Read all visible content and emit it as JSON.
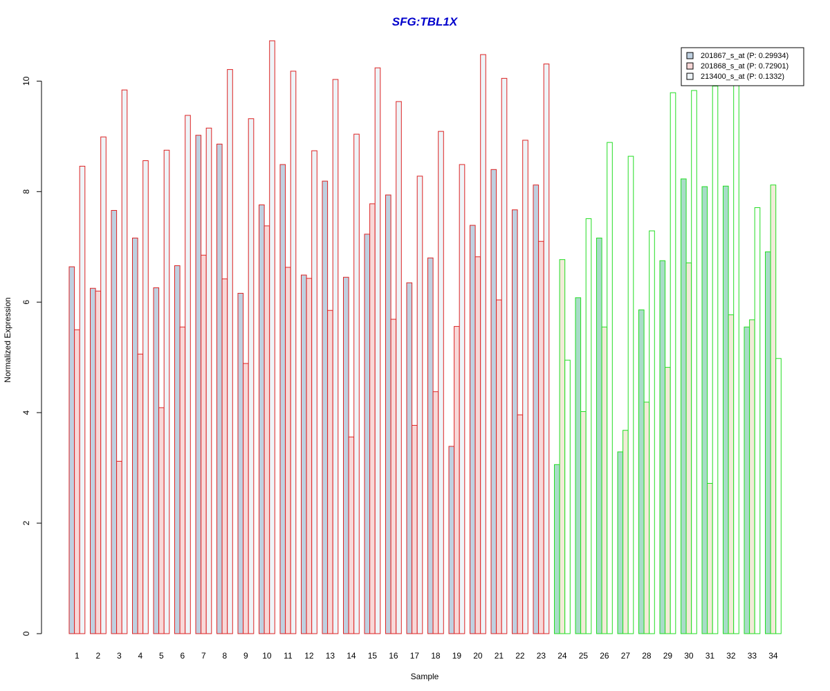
{
  "chart_data": {
    "type": "bar",
    "title": "SFG:TBL1X",
    "title_color": "#0000CC",
    "xlabel": "Sample",
    "ylabel": "Normalized Expression",
    "ylim": [
      0,
      10.73
    ],
    "yticks": [
      0,
      2,
      4,
      6,
      8,
      10
    ],
    "grid": false,
    "legend_position": "top-right",
    "categories": [
      "1",
      "2",
      "3",
      "4",
      "5",
      "6",
      "7",
      "8",
      "9",
      "10",
      "11",
      "12",
      "13",
      "14",
      "15",
      "16",
      "17",
      "18",
      "19",
      "20",
      "21",
      "22",
      "23",
      "24",
      "25",
      "26",
      "27",
      "28",
      "29",
      "30",
      "31",
      "32",
      "33",
      "34"
    ],
    "group_border_colors": {
      "first_group": "#DD2222",
      "second_group": "#22DD22",
      "first_group_count": 23
    },
    "series": [
      {
        "name": "201867_s_at (P: 0.29934)",
        "fill": "#BFD0E0",
        "fill_group2": "#A8DCC8",
        "values": [
          6.64,
          6.25,
          7.66,
          7.16,
          6.26,
          6.66,
          9.02,
          8.86,
          6.16,
          7.76,
          8.49,
          6.49,
          8.19,
          6.45,
          7.23,
          7.94,
          6.35,
          6.8,
          3.39,
          7.39,
          8.4,
          7.67,
          8.12,
          3.06,
          6.08,
          7.16,
          3.29,
          5.86,
          6.75,
          8.23,
          8.09,
          8.1,
          5.55,
          6.91
        ]
      },
      {
        "name": "201868_s_at (P: 0.72901)",
        "fill": "#F8D8D8",
        "fill_group2": "#F2EBD8",
        "values": [
          5.5,
          6.2,
          3.12,
          5.06,
          4.09,
          5.55,
          6.85,
          6.42,
          4.89,
          7.38,
          6.63,
          6.43,
          5.85,
          3.56,
          7.78,
          5.69,
          3.77,
          4.38,
          5.56,
          6.82,
          6.04,
          3.96,
          7.1,
          6.77,
          4.02,
          5.55,
          3.68,
          4.19,
          4.82,
          6.71,
          2.72,
          5.77,
          5.68,
          8.12
        ]
      },
      {
        "name": "213400_s_at (P: 0.1332)",
        "fill": "#EEF4F8",
        "fill_group2": "#FFFFFF",
        "values": [
          8.46,
          8.99,
          9.84,
          8.56,
          8.75,
          9.38,
          9.15,
          10.21,
          9.32,
          10.73,
          10.18,
          8.74,
          10.03,
          9.04,
          10.24,
          9.63,
          8.28,
          9.09,
          8.49,
          10.48,
          10.05,
          8.93,
          10.31,
          4.95,
          7.51,
          8.89,
          8.64,
          7.29,
          9.79,
          9.83,
          9.91,
          9.94,
          7.71,
          4.98
        ]
      }
    ]
  }
}
